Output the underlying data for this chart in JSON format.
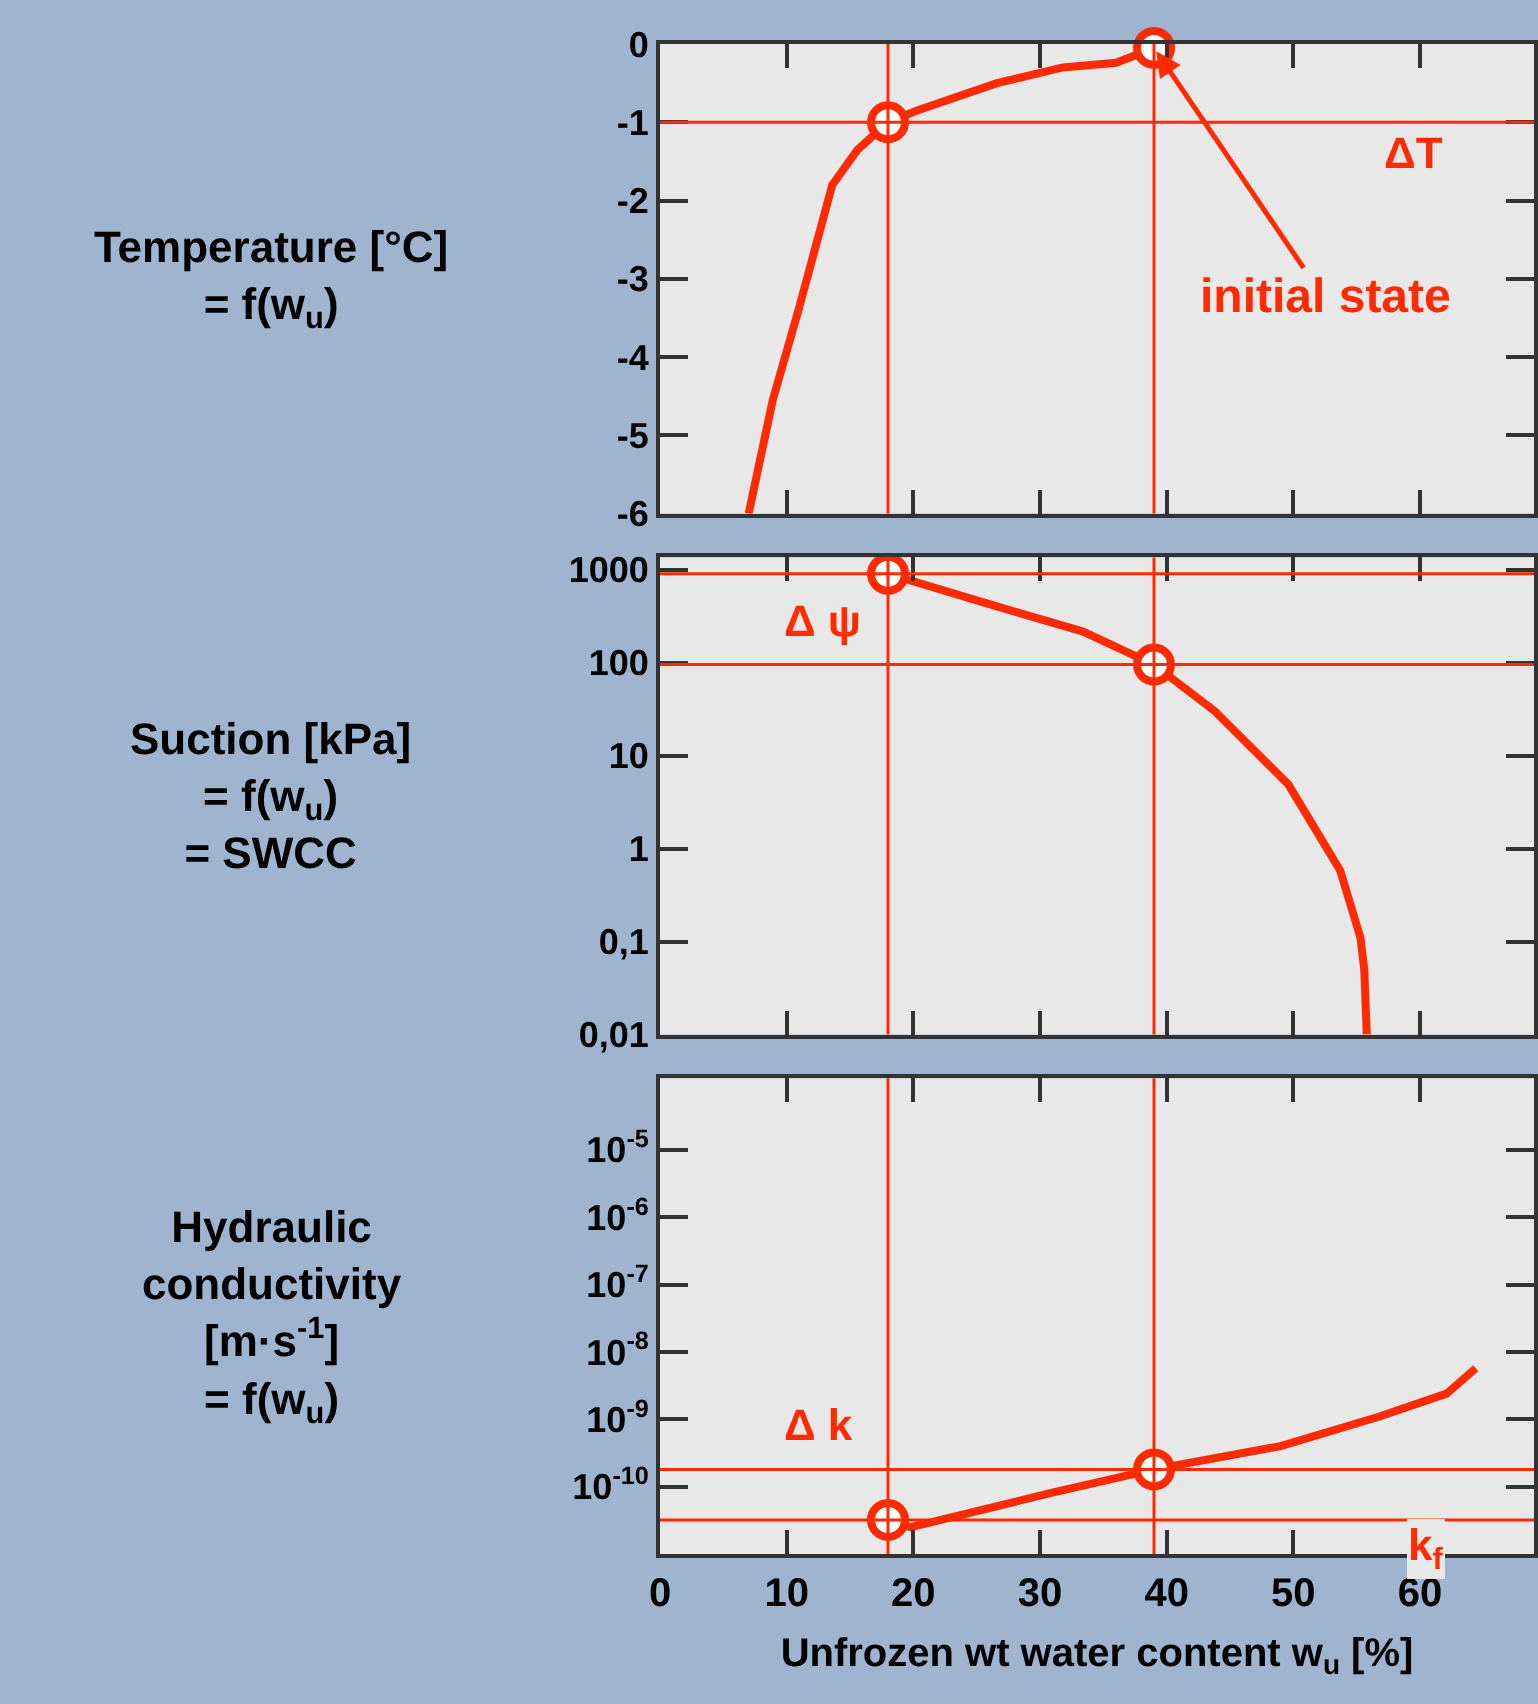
{
  "chart_data": [
    {
      "type": "line",
      "ylabel": "Temperature [°C]\n= f(w$_{u}$)",
      "xlim": [
        0,
        69
      ],
      "xticks": [
        0,
        10,
        20,
        30,
        40,
        50,
        60
      ],
      "ylim": [
        -6,
        0
      ],
      "yticks": [
        0,
        -1,
        -2,
        -3,
        -4,
        -5,
        -6
      ],
      "tick_labels": "y",
      "grid": false,
      "series": [
        {
          "color": "#ff2a00",
          "marker": "none",
          "x": [
            7,
            8.9,
            11,
            13.6,
            15.6,
            18,
            20.3,
            26.6,
            31.8,
            36,
            39
          ],
          "values": [
            -6,
            -4.55,
            -3.36,
            -1.8,
            -1.35,
            -1,
            -0.85,
            -0.5,
            -0.3,
            -0.24,
            -0.05
          ]
        },
        {
          "type": "scatter",
          "color": "#ff2a00",
          "marker": "circle",
          "x": [
            18,
            39
          ],
          "values": [
            -1,
            -0.05
          ]
        }
      ],
      "ref_lines": [
        {
          "axis": "y",
          "value": -1,
          "label": "ΔT",
          "color": "#ff2a00"
        },
        {
          "axis": "x",
          "value": 18,
          "color": "#ff2a00"
        },
        {
          "axis": "x",
          "value": 39,
          "color": "#ff2a00"
        }
      ],
      "annotations": [
        {
          "text": "initial state",
          "x": 39,
          "y": -0.05
        }
      ]
    },
    {
      "type": "line",
      "ylabel": "Suction [kPa]\n= f(w$_{u}$)\n= SWCC",
      "log": "y",
      "xlim": [
        0,
        69
      ],
      "xticks": [
        0,
        10,
        20,
        30,
        40,
        50,
        60
      ],
      "ylim": [
        0.01,
        1350
      ],
      "yticks": [
        {
          "value": 1000,
          "label": "1000"
        },
        {
          "value": 100,
          "label": "100"
        },
        {
          "value": 10,
          "label": "10"
        },
        {
          "value": 1,
          "label": "1"
        },
        {
          "value": 0.1,
          "label": "0,1"
        },
        {
          "value": 0.01,
          "label": "0,01"
        }
      ],
      "tick_labels": "y",
      "grid": false,
      "series": [
        {
          "color": "#ff2a00",
          "marker": "none",
          "x": [
            18,
            25.6,
            33.4,
            39,
            43.8,
            49.6,
            53.7,
            55.3,
            55.6,
            55.8
          ],
          "values": [
            900,
            440,
            215,
            95,
            30,
            4.9,
            0.58,
            0.11,
            0.05,
            0.01
          ]
        },
        {
          "type": "scatter",
          "color": "#ff2a00",
          "marker": "circle",
          "x": [
            18,
            39
          ],
          "values": [
            900,
            95
          ]
        }
      ],
      "ref_lines": [
        {
          "axis": "y",
          "value": 900,
          "color": "#ff2a00"
        },
        {
          "axis": "y",
          "value": 95,
          "label": "Δ ψ",
          "color": "#ff2a00"
        },
        {
          "axis": "x",
          "value": 18,
          "color": "#ff2a00"
        },
        {
          "axis": "x",
          "value": 39,
          "color": "#ff2a00"
        }
      ]
    },
    {
      "type": "line",
      "ylabel": "Hydraulic\nconductivity\n[m·s$^{-1}$]\n= f(w$_{u}$)",
      "xlabel": "Unfrozen wt water content w$_{u}$ [%]",
      "log": "y",
      "xlim": [
        0,
        69
      ],
      "xticks": [
        0,
        10,
        20,
        30,
        40,
        50,
        60
      ],
      "ylim": [
        1e-11,
        0.000115
      ],
      "yticks": [
        {
          "value": 1e-05,
          "label": "10$^{-5}$"
        },
        {
          "value": 1e-06,
          "label": "10$^{-6}$"
        },
        {
          "value": 1e-07,
          "label": "10$^{-7}$"
        },
        {
          "value": 1e-08,
          "label": "10$^{-8}$"
        },
        {
          "value": 1e-09,
          "label": "10$^{-9}$"
        },
        {
          "value": 1e-10,
          "label": "10$^{-10}$"
        }
      ],
      "grid": false,
      "series": [
        {
          "color": "#ff2a00",
          "marker": "none",
          "x": [
            18,
            19.8,
            30.8,
            39,
            49,
            56.8,
            62.1,
            64.4
          ],
          "values": [
            3.2e-11,
            2.5e-11,
            8e-11,
            1.8e-10,
            4e-10,
            1.1e-09,
            2.4e-09,
            5.7e-09
          ]
        },
        {
          "type": "scatter",
          "color": "#ff2a00",
          "marker": "circle",
          "x": [
            18,
            39
          ],
          "values": [
            3.2e-11,
            1.8e-10
          ]
        }
      ],
      "ref_lines": [
        {
          "axis": "y",
          "value": 3.2e-11,
          "label": "k$_{f}$",
          "color": "#ff2a00"
        },
        {
          "axis": "y",
          "value": 1.8e-10,
          "label": "Δ k",
          "color": "#ff2a00"
        },
        {
          "axis": "x",
          "value": 18,
          "color": "#ff2a00"
        },
        {
          "axis": "x",
          "value": 39,
          "color": "#ff2a00"
        }
      ]
    }
  ]
}
